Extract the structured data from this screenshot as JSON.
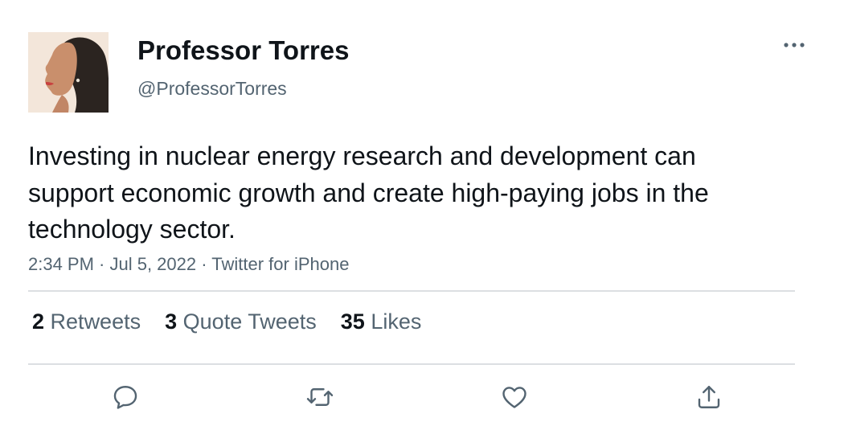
{
  "tweet": {
    "author": {
      "display_name": "Professor Torres",
      "handle": "@ProfessorTorres"
    },
    "text": "Investing in nuclear energy research and development can support economic growth and create high-paying jobs in the technology sector.",
    "timestamp": "2:34 PM · Jul 5, 2022 · Twitter for iPhone"
  },
  "stats": {
    "retweets": {
      "count": "2",
      "label": "Retweets"
    },
    "quotes": {
      "count": "3",
      "label": "Quote Tweets"
    },
    "likes": {
      "count": "35",
      "label": "Likes"
    }
  },
  "actions": {
    "reply_icon": "reply-icon",
    "retweet_icon": "retweet-icon",
    "like_icon": "heart-icon",
    "share_icon": "share-icon"
  },
  "colors": {
    "text": "#0f1419",
    "secondary": "#536471",
    "divider": "#dcdfe2"
  }
}
